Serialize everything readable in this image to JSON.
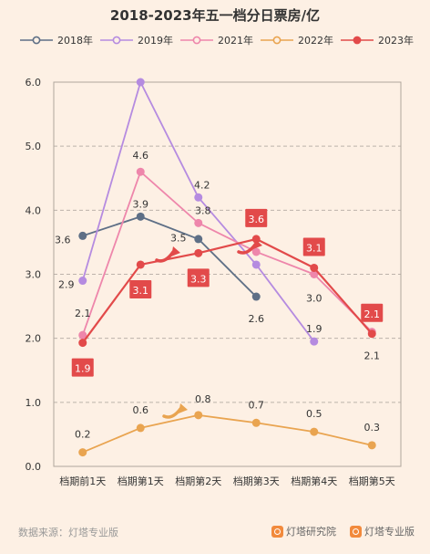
{
  "title": "2018-2023年五一档分日票房/亿",
  "source": "数据来源：灯塔专业版",
  "brands": [
    "灯塔研究院",
    "灯塔专业版"
  ],
  "chart_data": {
    "type": "line",
    "title": "2018-2023年五一档分日票房/亿",
    "categories": [
      "档期前1天",
      "档期第1天",
      "档期第2天",
      "档期第3天",
      "档期第4天",
      "档期第5天"
    ],
    "ylim": [
      0,
      6
    ],
    "yticks": [
      "0.0",
      "1.0",
      "2.0",
      "3.0",
      "4.0",
      "5.0",
      "6.0"
    ],
    "grid": true,
    "legend": "top",
    "series": [
      {
        "name": "2018年",
        "color": "#5e6f86",
        "values": [
          3.6,
          3.9,
          3.55,
          2.65,
          null,
          null
        ],
        "labels": [
          "3.6",
          "3.9",
          "",
          "2.6",
          "",
          ""
        ]
      },
      {
        "name": "2019年",
        "color": "#b58be0",
        "values": [
          2.9,
          6.0,
          4.2,
          3.15,
          1.95,
          null
        ],
        "labels": [
          "2.9",
          "",
          "4.2",
          "",
          "1.9",
          ""
        ]
      },
      {
        "name": "2021年",
        "color": "#ee86ab",
        "values": [
          2.05,
          4.6,
          3.8,
          3.35,
          3.0,
          2.1
        ],
        "labels": [
          "2.1",
          "4.6",
          "3.8",
          "",
          "3.0",
          "2.1"
        ]
      },
      {
        "name": "2022年",
        "color": "#e9a450",
        "values": [
          0.22,
          0.6,
          0.8,
          0.68,
          0.54,
          0.33
        ],
        "labels": [
          "0.2",
          "0.6",
          "0.8",
          "0.7",
          "0.5",
          "0.3"
        ]
      },
      {
        "name": "2023年",
        "color": "#e24a4a",
        "values": [
          1.93,
          3.15,
          3.33,
          3.55,
          3.1,
          2.07
        ],
        "labels": [
          "1.9",
          "3.1",
          "3.3",
          "3.6",
          "3.1",
          "2.1"
        ]
      }
    ],
    "annotations": [
      "3.5"
    ]
  }
}
